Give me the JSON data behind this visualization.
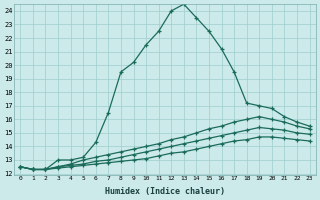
{
  "xlabel": "Humidex (Indice chaleur)",
  "x_values": [
    0,
    1,
    2,
    3,
    4,
    5,
    6,
    7,
    8,
    9,
    10,
    11,
    12,
    13,
    14,
    15,
    16,
    17,
    18,
    19,
    20,
    21,
    22,
    23
  ],
  "line1": [
    12.5,
    12.3,
    12.3,
    13.0,
    13.0,
    13.2,
    14.3,
    16.5,
    19.5,
    20.2,
    21.5,
    22.5,
    24.0,
    24.5,
    23.5,
    22.5,
    21.2,
    19.5,
    17.2,
    17.0,
    16.8,
    16.2,
    15.8,
    15.5
  ],
  "line2": [
    12.5,
    12.3,
    12.3,
    12.5,
    12.7,
    13.0,
    13.2,
    13.4,
    13.6,
    13.8,
    14.0,
    14.2,
    14.5,
    14.7,
    15.0,
    15.3,
    15.5,
    15.8,
    16.0,
    16.2,
    16.0,
    15.8,
    15.5,
    15.3
  ],
  "line3": [
    12.5,
    12.3,
    12.3,
    12.5,
    12.6,
    12.7,
    12.9,
    13.0,
    13.2,
    13.4,
    13.6,
    13.8,
    14.0,
    14.2,
    14.4,
    14.6,
    14.8,
    15.0,
    15.2,
    15.4,
    15.3,
    15.2,
    15.0,
    14.9
  ],
  "line4": [
    12.5,
    12.3,
    12.3,
    12.4,
    12.5,
    12.6,
    12.7,
    12.8,
    12.9,
    13.0,
    13.1,
    13.3,
    13.5,
    13.6,
    13.8,
    14.0,
    14.2,
    14.4,
    14.5,
    14.7,
    14.7,
    14.6,
    14.5,
    14.4
  ],
  "line_color": "#1a6b5a",
  "bg_color": "#cdeaea",
  "grid_color": "#9fcece",
  "xlim": [
    -0.5,
    23.5
  ],
  "ylim": [
    11.9,
    24.5
  ],
  "yticks": [
    12,
    13,
    14,
    15,
    16,
    17,
    18,
    19,
    20,
    21,
    22,
    23,
    24
  ],
  "xticks": [
    0,
    1,
    2,
    3,
    4,
    5,
    6,
    7,
    8,
    9,
    10,
    11,
    12,
    13,
    14,
    15,
    16,
    17,
    18,
    19,
    20,
    21,
    22,
    23
  ],
  "marker": "+",
  "markersize": 3,
  "linewidth": 0.9
}
